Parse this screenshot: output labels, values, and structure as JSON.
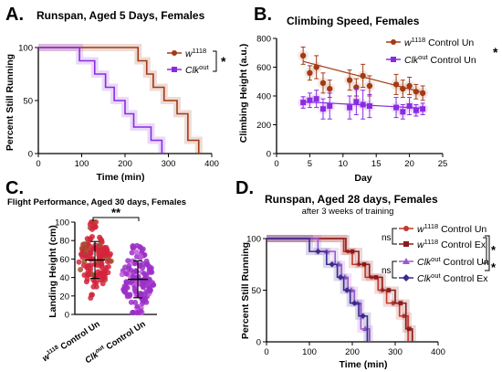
{
  "chart_data": [
    {
      "panel": "A.",
      "type": "line",
      "subtype": "kaplan-meier step",
      "title": "Runspan, Aged 5 Days, Females",
      "xlabel": "Time (min)",
      "ylabel": "Percent Still Running",
      "xlim": [
        0,
        400
      ],
      "ylim": [
        0,
        100
      ],
      "xticks": [
        0,
        100,
        200,
        300,
        400
      ],
      "yticks": [
        0,
        50,
        100
      ],
      "legend_position": "top-right",
      "significance": "*",
      "series": [
        {
          "name_base": "w",
          "name_sup": "1118",
          "color": "#a23a14",
          "x": [
            0,
            230,
            250,
            265,
            290,
            320,
            345,
            370
          ],
          "y": [
            100,
            87.5,
            75,
            62.5,
            50,
            37.5,
            12.5,
            0
          ]
        },
        {
          "name_base": "Clk",
          "name_sup": "out",
          "color": "#8a2be2",
          "x": [
            0,
            95,
            130,
            155,
            175,
            200,
            220,
            260,
            285
          ],
          "y": [
            100,
            87.5,
            75,
            62.5,
            50,
            37.5,
            25,
            12.5,
            0
          ]
        }
      ]
    },
    {
      "panel": "B.",
      "type": "scatter",
      "title": "Climbing Speed, Females",
      "xlabel": "Day",
      "ylabel": "Climbing Height (a.u.)",
      "xlim": [
        0,
        25
      ],
      "ylim": [
        0,
        800
      ],
      "xticks": [
        0,
        5,
        10,
        15,
        20,
        25
      ],
      "yticks": [
        0,
        200,
        400,
        600,
        800
      ],
      "legend_position": "top-right",
      "significance": "*",
      "series": [
        {
          "name_base": "w",
          "name_sup": "1118",
          "name_rest": " Control Un",
          "color": "#a23a14",
          "marker": "circle",
          "x": [
            4,
            5,
            6,
            7,
            8,
            11,
            12,
            13,
            14,
            18,
            19,
            20,
            21,
            22
          ],
          "y": [
            680,
            560,
            600,
            490,
            450,
            510,
            460,
            540,
            470,
            480,
            450,
            470,
            430,
            420
          ],
          "err": [
            60,
            50,
            80,
            70,
            60,
            70,
            60,
            80,
            70,
            70,
            60,
            60,
            50,
            50
          ],
          "trend": [
            640,
            425
          ]
        },
        {
          "name_base": "Clk",
          "name_sup": "out",
          "name_rest": " Control Un",
          "color": "#8a2be2",
          "marker": "square",
          "x": [
            4,
            5,
            6,
            7,
            8,
            11,
            12,
            13,
            14,
            18,
            19,
            20,
            21,
            22
          ],
          "y": [
            355,
            370,
            380,
            310,
            330,
            320,
            360,
            340,
            330,
            320,
            290,
            330,
            300,
            310
          ],
          "err": [
            40,
            50,
            60,
            70,
            90,
            80,
            90,
            100,
            80,
            70,
            50,
            60,
            40,
            40
          ],
          "trend": [
            360,
            315
          ]
        }
      ]
    },
    {
      "panel": "C.",
      "type": "scatter",
      "subtype": "dot plot with mean and SD",
      "title": "Flight Performance, Aged 30 days, Females",
      "ylabel": "Landing Height (cm)",
      "ylim": [
        0,
        100
      ],
      "yticks": [
        0,
        20,
        40,
        60,
        80,
        100
      ],
      "significance": "**",
      "categories": [
        {
          "base": "w",
          "sup": "1118",
          "rest": " Control Un"
        },
        {
          "base": "Clk",
          "sup": "out",
          "rest": " Control Un"
        }
      ],
      "series": [
        {
          "color": "#d4243c",
          "mean": 59,
          "sd": 20
        },
        {
          "color": "#9b30c8",
          "mean": 38,
          "sd": 20
        }
      ]
    },
    {
      "panel": "D.",
      "type": "line",
      "subtype": "kaplan-meier step",
      "title": "Runspan, Aged 28 days, Females",
      "subtitle": "after 3 weeks of training",
      "xlabel": "Time (min)",
      "ylabel": "Percent Still Running",
      "xlim": [
        0,
        400
      ],
      "ylim": [
        0,
        100
      ],
      "xticks": [
        0,
        100,
        200,
        300,
        400
      ],
      "yticks": [
        0,
        50,
        100
      ],
      "legend_position": "top-right",
      "ns_label": "ns",
      "significance": "*",
      "series": [
        {
          "name_base": "w",
          "name_sup": "1118",
          "name_rest": " Control Un",
          "color": "#c0392b",
          "marker": "circle",
          "x": [
            0,
            180,
            200,
            230,
            260,
            280,
            310,
            330
          ],
          "y": [
            100,
            87.5,
            75,
            62.5,
            50,
            37.5,
            25,
            0
          ]
        },
        {
          "name_base": "w",
          "name_sup": "1118",
          "name_rest": " Control Ex",
          "color": "#8b1a1a",
          "marker": "square",
          "x": [
            0,
            185,
            215,
            240,
            270,
            300,
            325,
            340
          ],
          "y": [
            100,
            87.5,
            75,
            62.5,
            50,
            37.5,
            12.5,
            0
          ]
        },
        {
          "name_base": "Clk",
          "name_sup": "out",
          "name_rest": " Control Un",
          "color": "#9b59d0",
          "marker": "triangle",
          "x": [
            0,
            120,
            160,
            175,
            190,
            205,
            220,
            240
          ],
          "y": [
            100,
            87.5,
            75,
            62.5,
            50,
            37.5,
            12.5,
            0
          ]
        },
        {
          "name_base": "Clk",
          "name_sup": "out",
          "name_rest": " Control Ex",
          "color": "#3a2a8c",
          "marker": "diamond",
          "x": [
            0,
            100,
            140,
            165,
            180,
            195,
            215,
            235
          ],
          "y": [
            100,
            87.5,
            75,
            62.5,
            50,
            37.5,
            25,
            0
          ]
        }
      ]
    }
  ]
}
